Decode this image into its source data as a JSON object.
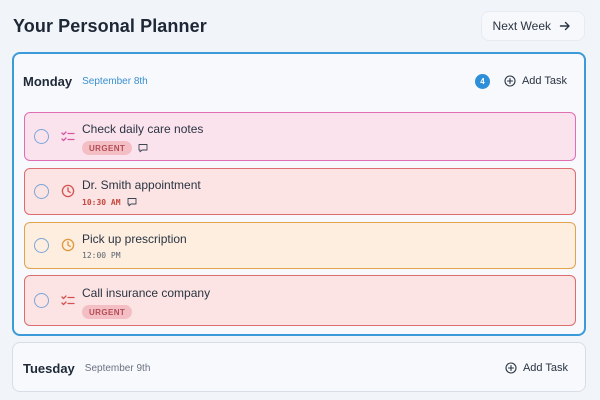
{
  "header": {
    "title": "Your Personal Planner",
    "next_week_label": "Next Week",
    "next_week_icon": "arrow-right-icon"
  },
  "days": [
    {
      "name": "Monday",
      "date": "September 8th",
      "task_count": "4",
      "add_task_label": "Add Task",
      "active": true,
      "accent": "#3b9ad9",
      "tasks": [
        {
          "title": "Check daily care notes",
          "icon": "checklist-icon",
          "tag": "URGENT",
          "time": "",
          "has_comment": true,
          "color": "#df6eb5"
        },
        {
          "title": "Dr. Smith appointment",
          "icon": "clock-icon",
          "tag": "",
          "time": "10:30 AM",
          "has_comment": true,
          "color": "#dc6c6e"
        },
        {
          "title": "Pick up prescription",
          "icon": "clock-icon",
          "tag": "",
          "time": "12:00 PM",
          "has_comment": false,
          "color": "#e3a24e"
        },
        {
          "title": "Call insurance company",
          "icon": "checklist-icon",
          "tag": "URGENT",
          "time": "",
          "has_comment": false,
          "color": "#dc6c6e"
        }
      ]
    },
    {
      "name": "Tuesday",
      "date": "September 9th",
      "add_task_label": "Add Task",
      "active": false,
      "tasks": []
    }
  ]
}
